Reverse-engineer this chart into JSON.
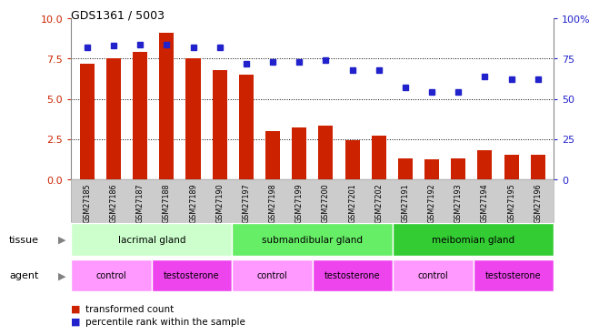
{
  "title": "GDS1361 / 5003",
  "samples": [
    "GSM27185",
    "GSM27186",
    "GSM27187",
    "GSM27188",
    "GSM27189",
    "GSM27190",
    "GSM27197",
    "GSM27198",
    "GSM27199",
    "GSM27200",
    "GSM27201",
    "GSM27202",
    "GSM27191",
    "GSM27192",
    "GSM27193",
    "GSM27194",
    "GSM27195",
    "GSM27196"
  ],
  "bar_values": [
    7.2,
    7.5,
    7.9,
    9.1,
    7.5,
    6.8,
    6.5,
    3.0,
    3.2,
    3.3,
    2.4,
    2.7,
    1.3,
    1.2,
    1.3,
    1.8,
    1.5,
    1.5
  ],
  "dot_values": [
    82,
    83,
    84,
    84,
    82,
    82,
    72,
    73,
    73,
    74,
    68,
    68,
    57,
    54,
    54,
    64,
    62,
    62
  ],
  "bar_color": "#cc2200",
  "dot_color": "#2222cc",
  "ylim_left": [
    0,
    10
  ],
  "ylim_right": [
    0,
    100
  ],
  "yticks_left": [
    0,
    2.5,
    5.0,
    7.5,
    10
  ],
  "yticks_right": [
    0,
    25,
    50,
    75,
    100
  ],
  "grid_lines": [
    2.5,
    5.0,
    7.5
  ],
  "tissue_groups": [
    {
      "label": "lacrimal gland",
      "start": 0,
      "end": 6,
      "color": "#ccffcc"
    },
    {
      "label": "submandibular gland",
      "start": 6,
      "end": 12,
      "color": "#66ee66"
    },
    {
      "label": "meibomian gland",
      "start": 12,
      "end": 18,
      "color": "#33cc33"
    }
  ],
  "agent_groups": [
    {
      "label": "control",
      "start": 0,
      "end": 3,
      "color": "#ff99ff"
    },
    {
      "label": "testosterone",
      "start": 3,
      "end": 6,
      "color": "#ee44ee"
    },
    {
      "label": "control",
      "start": 6,
      "end": 9,
      "color": "#ff99ff"
    },
    {
      "label": "testosterone",
      "start": 9,
      "end": 12,
      "color": "#ee44ee"
    },
    {
      "label": "control",
      "start": 12,
      "end": 15,
      "color": "#ff99ff"
    },
    {
      "label": "testosterone",
      "start": 15,
      "end": 18,
      "color": "#ee44ee"
    }
  ],
  "legend_items": [
    {
      "label": "transformed count",
      "color": "#cc2200"
    },
    {
      "label": "percentile rank within the sample",
      "color": "#2222cc"
    }
  ],
  "tissue_label": "tissue",
  "agent_label": "agent",
  "xtick_bg": "#cccccc",
  "spine_color": "#888888"
}
